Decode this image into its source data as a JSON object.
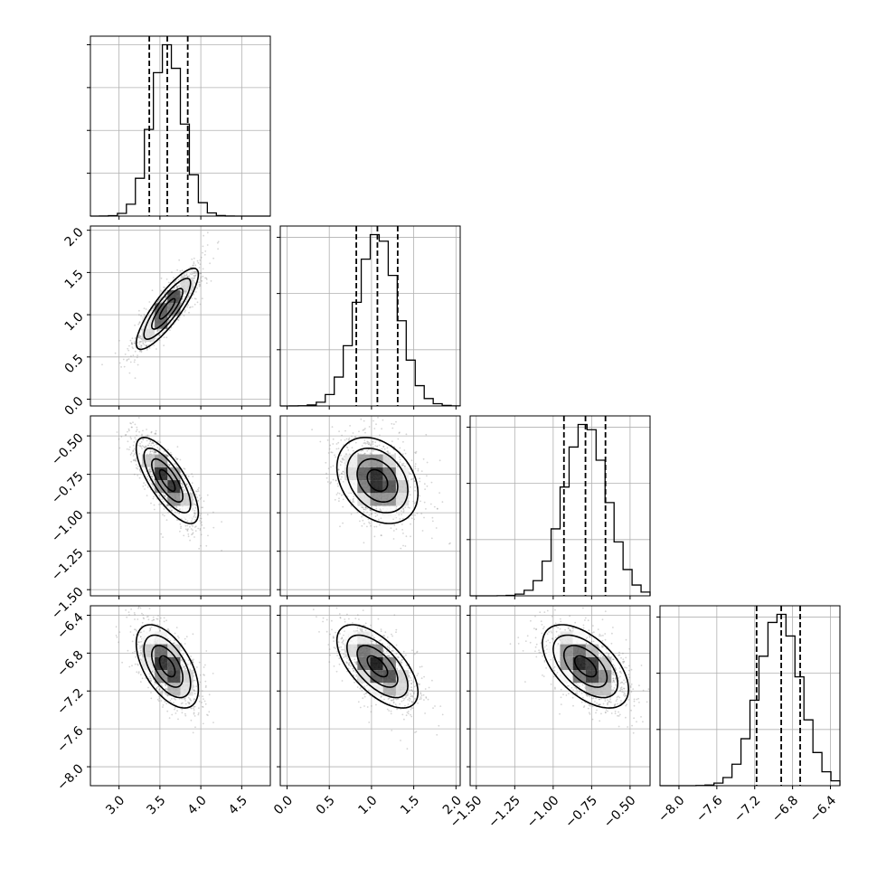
{
  "chart_data": {
    "type": "corner",
    "grid": true,
    "parameters": [
      {
        "range": [
          2.65,
          4.85
        ],
        "ticks": [
          3.0,
          3.5,
          4.0,
          4.5
        ],
        "tick_labels": [
          "3.0",
          "3.5",
          "4.0",
          "4.5"
        ],
        "mean": 3.59,
        "sd": 0.19,
        "quantiles": [
          3.37,
          3.59,
          3.84
        ],
        "hist_ticks": 4
      },
      {
        "range": [
          -0.08,
          2.05
        ],
        "ticks": [
          0.0,
          0.5,
          1.0,
          1.5,
          2.0
        ],
        "tick_labels": [
          "0.0",
          "0.5",
          "1.0",
          "1.5",
          "2.0"
        ],
        "mean": 1.07,
        "sd": 0.24,
        "quantiles": [
          0.82,
          1.07,
          1.31
        ],
        "hist_ticks": 3
      },
      {
        "range": [
          -1.54,
          -0.37
        ],
        "ticks": [
          -1.5,
          -1.25,
          -1.0,
          -0.75,
          -0.5
        ],
        "tick_labels": [
          "−1.50",
          "−1.25",
          "−1.00",
          "−0.75",
          "−0.50"
        ],
        "mean": -0.79,
        "sd": 0.14,
        "quantiles": [
          -0.93,
          -0.79,
          -0.66
        ],
        "hist_ticks": 3
      },
      {
        "range": [
          -8.2,
          -6.3
        ],
        "ticks": [
          -8.0,
          -7.6,
          -7.2,
          -6.8,
          -6.4
        ],
        "tick_labels": [
          "−8.0",
          "−7.6",
          "−7.2",
          "−6.8",
          "−6.4"
        ],
        "mean": -6.94,
        "sd": 0.22,
        "quantiles": [
          -7.18,
          -6.92,
          -6.72
        ],
        "hist_ticks": 3
      }
    ],
    "correlations": {
      "1-0": 0.85,
      "2-0": -0.75,
      "3-0": -0.55,
      "2-1": -0.3,
      "3-1": -0.62,
      "3-2": -0.55
    }
  }
}
